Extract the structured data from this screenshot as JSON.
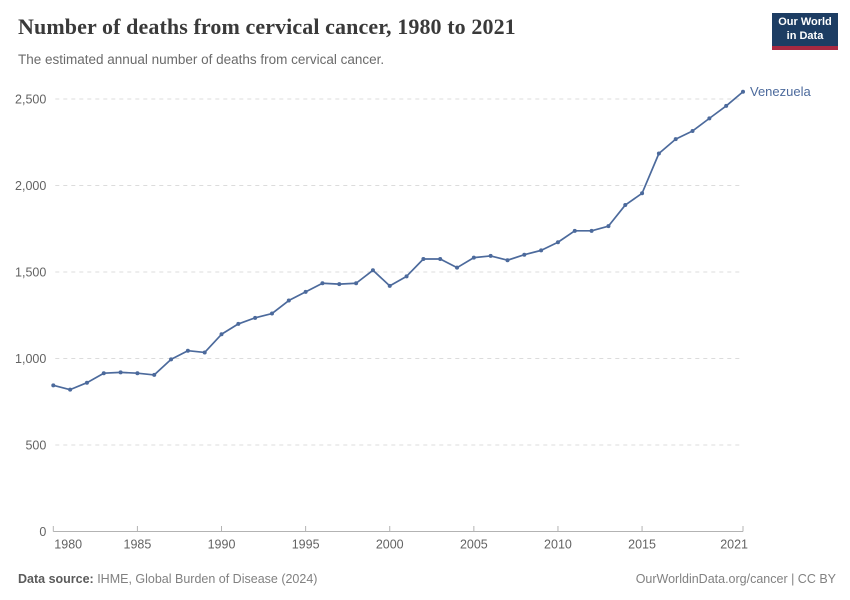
{
  "header": {
    "title": "Number of deaths from cervical cancer, 1980 to 2021",
    "subtitle": "The estimated annual number of deaths from cervical cancer.",
    "logo": {
      "line1": "Our World",
      "line2": "in Data",
      "bg_color": "#1d3d63",
      "accent_color": "#a82941"
    }
  },
  "chart_data": {
    "type": "line",
    "title": "Number of deaths from cervical cancer, 1980 to 2021",
    "series": [
      {
        "name": "Venezuela",
        "color": "#4c6a9c",
        "x": [
          1980,
          1981,
          1982,
          1983,
          1984,
          1985,
          1986,
          1987,
          1988,
          1989,
          1990,
          1991,
          1992,
          1993,
          1994,
          1995,
          1996,
          1997,
          1998,
          1999,
          2000,
          2001,
          2002,
          2003,
          2004,
          2005,
          2006,
          2007,
          2008,
          2009,
          2010,
          2011,
          2012,
          2013,
          2014,
          2015,
          2016,
          2017,
          2018,
          2019,
          2020,
          2021
        ],
        "values": [
          845,
          820,
          860,
          915,
          920,
          915,
          905,
          995,
          1045,
          1035,
          1140,
          1200,
          1235,
          1260,
          1335,
          1385,
          1435,
          1430,
          1435,
          1510,
          1420,
          1475,
          1575,
          1575,
          1525,
          1583,
          1593,
          1568,
          1600,
          1625,
          1672,
          1738,
          1738,
          1765,
          1887,
          1955,
          2185,
          2268,
          2315,
          2388,
          2460,
          2542
        ]
      }
    ],
    "xlabel": "",
    "ylabel": "",
    "xlim": [
      1980,
      2021
    ],
    "ylim": [
      0,
      2600
    ],
    "x_ticks": [
      1980,
      1985,
      1990,
      1995,
      2000,
      2005,
      2010,
      2015,
      2021
    ],
    "y_ticks": [
      0,
      500,
      1000,
      1500,
      2000,
      2500
    ],
    "y_tick_labels": [
      "0",
      "500",
      "1,000",
      "1,500",
      "2,000",
      "2,500"
    ],
    "grid": "horizontal-dashed",
    "legend": "end-of-line-label",
    "colors": {
      "grid": "#dcdcdc",
      "axis": "#b3b3b3",
      "tick_label": "#636363"
    }
  },
  "footer": {
    "source_label": "Data source:",
    "source_text": " IHME, Global Burden of Disease (2024)",
    "right_text": "OurWorldinData.org/cancer | CC BY"
  }
}
